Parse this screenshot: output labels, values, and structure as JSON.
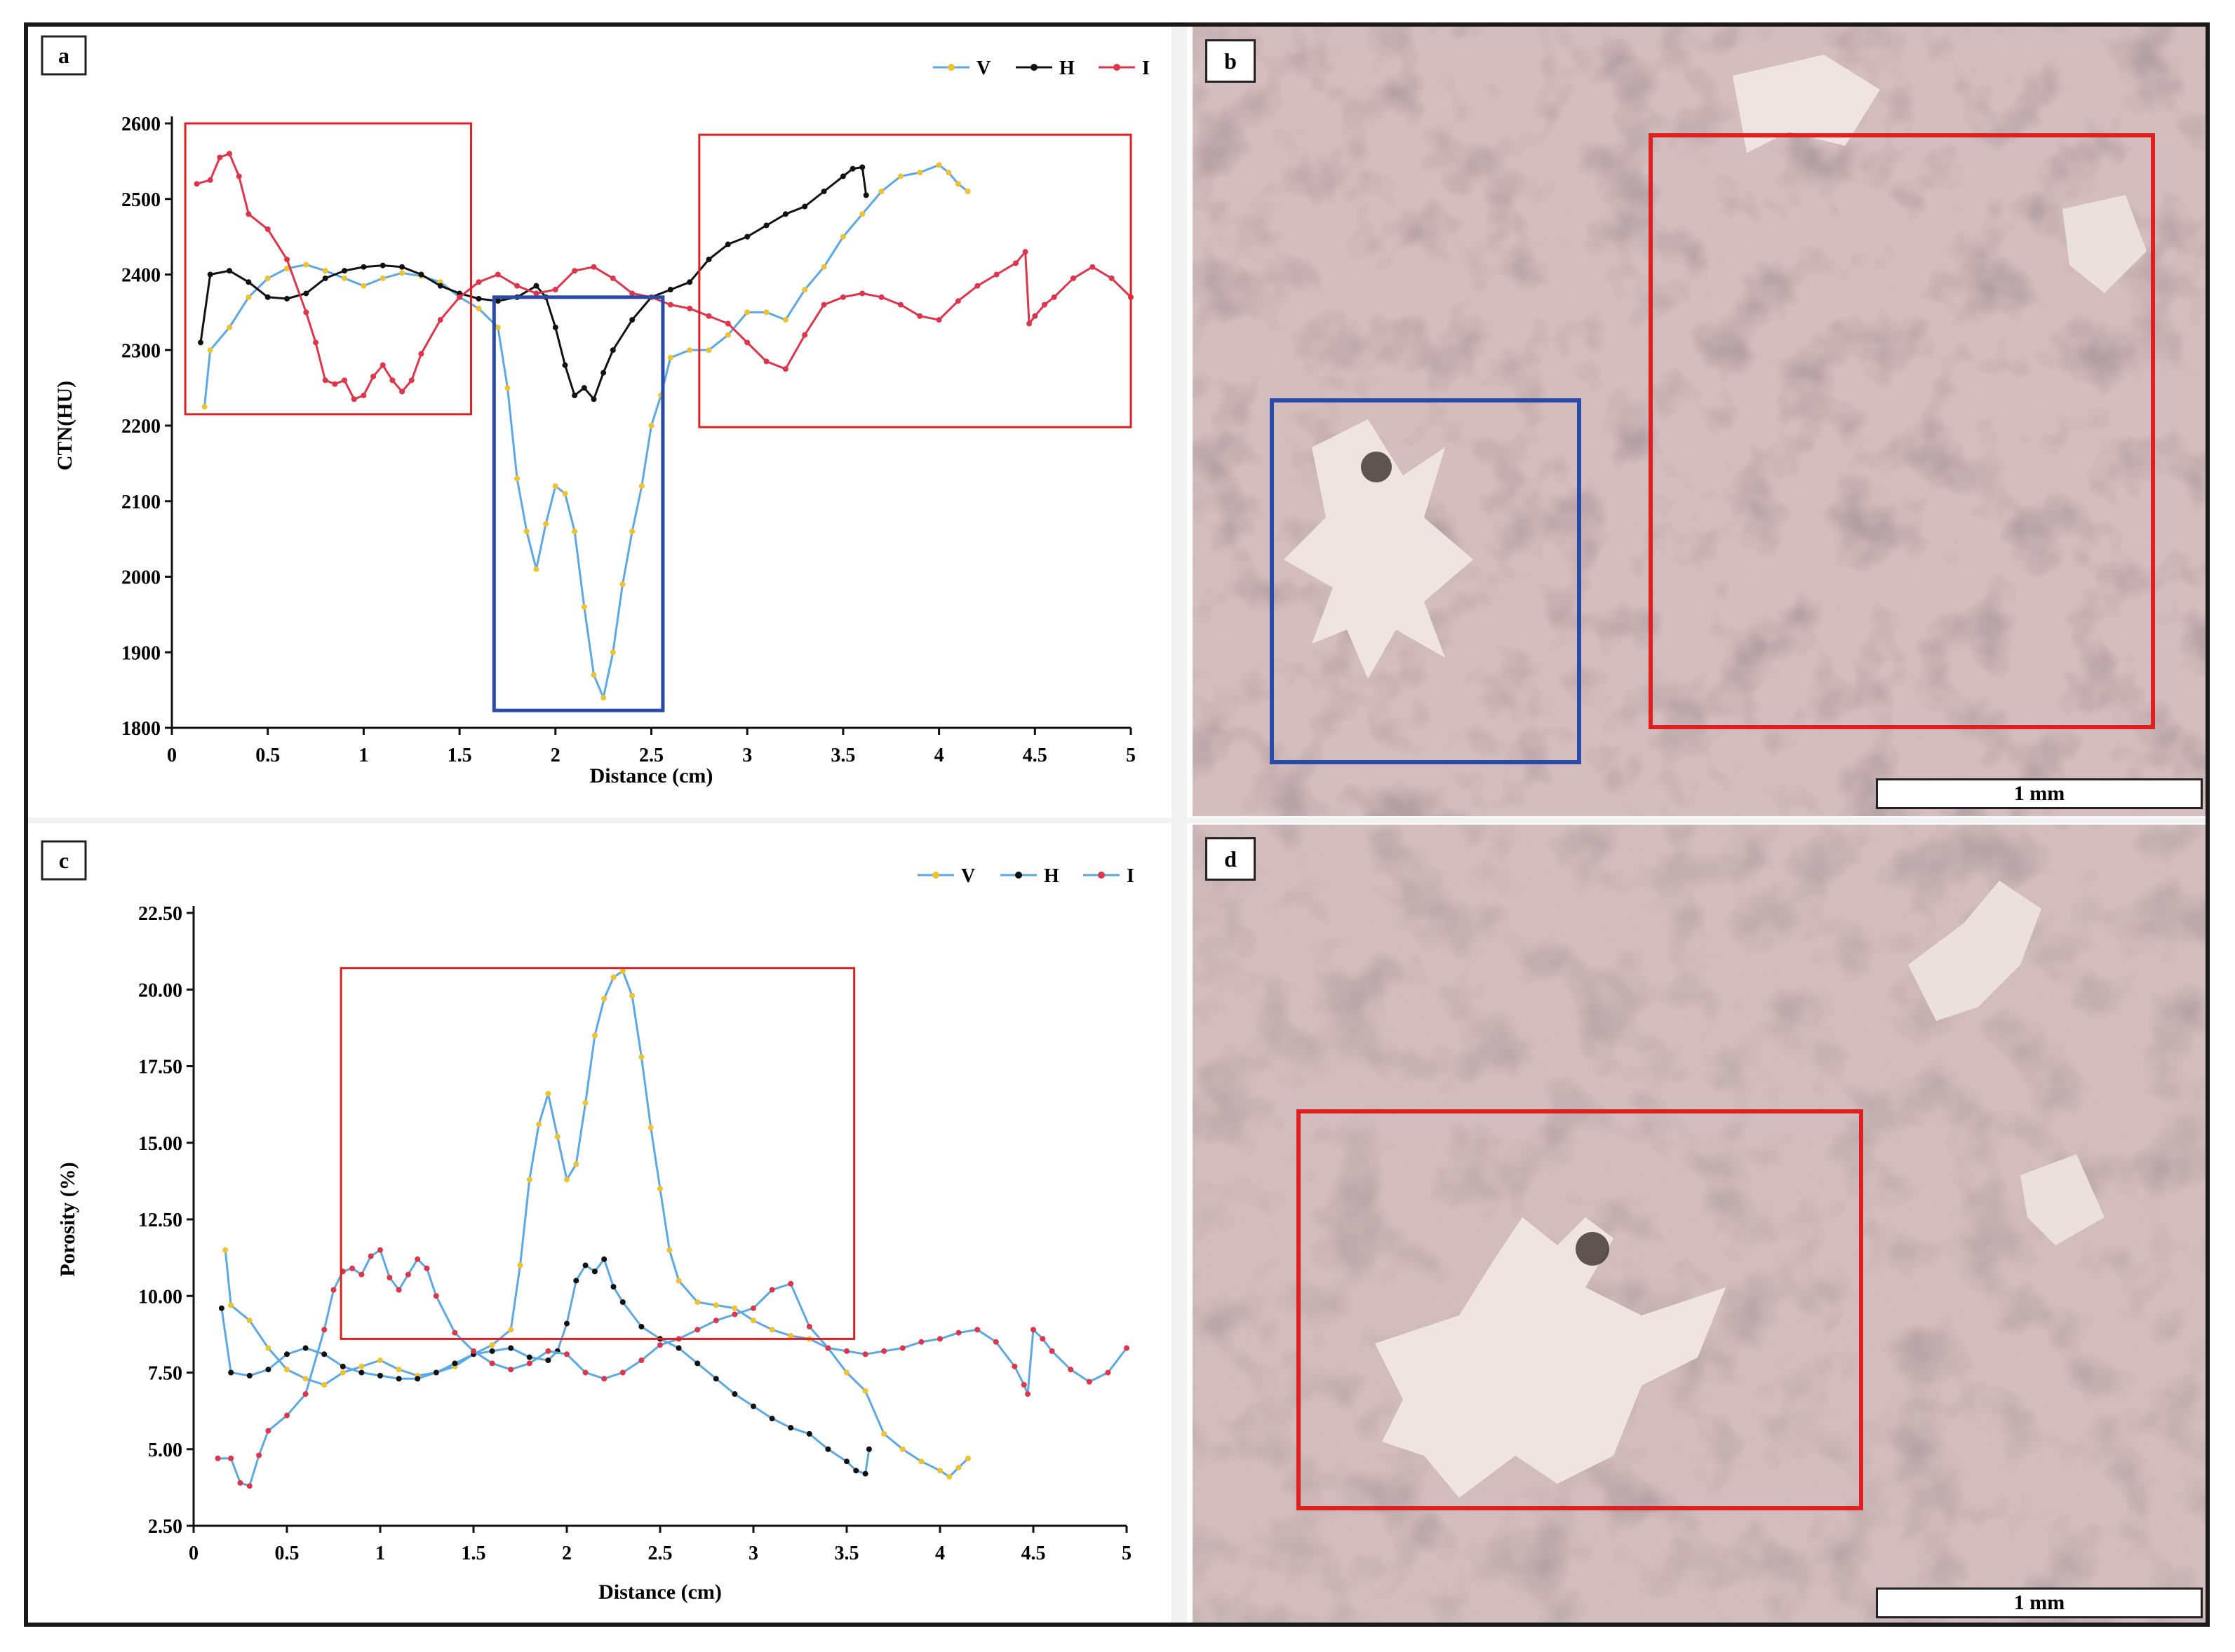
{
  "colors": {
    "frame": "#1a1a1a",
    "series_line": "#5aa9e6",
    "marker_v": "#f2c12e",
    "marker_h": "#111111",
    "marker_i": "#e0344b",
    "line_h_panel_a": "#111111",
    "line_i_panel_a": "#e0344b",
    "roi_red": "#e02020",
    "roi_blue": "#2a4aa8"
  },
  "panels": {
    "a": {
      "label": "a"
    },
    "b": {
      "label": "b",
      "scalebar": "1 mm"
    },
    "c": {
      "label": "c"
    },
    "d": {
      "label": "d",
      "scalebar": "1 mm"
    }
  },
  "chart_data": [
    {
      "id": "a",
      "type": "line",
      "title": "",
      "xlabel": "Distance (cm)",
      "ylabel": "CTN(HU)",
      "xlim": [
        0,
        5
      ],
      "ylim": [
        1800,
        2600
      ],
      "xticks": [
        0,
        0.5,
        1,
        1.5,
        2,
        2.5,
        3,
        3.5,
        4,
        4.5,
        5
      ],
      "xtick_labels": [
        "0",
        "0.5",
        "1",
        "1.5",
        "2",
        "2.5",
        "3",
        "3.5",
        "4",
        "4.5",
        "5"
      ],
      "yticks": [
        1800,
        1900,
        2000,
        2100,
        2200,
        2300,
        2400,
        2500,
        2600
      ],
      "ytick_labels": [
        "1800",
        "1900",
        "2000",
        "2100",
        "2200",
        "2300",
        "2400",
        "2500",
        "2600"
      ],
      "legend": {
        "position": "top-right",
        "entries": [
          "V",
          "H",
          "I"
        ]
      },
      "series": [
        {
          "name": "V",
          "x": [
            0.17,
            0.2,
            0.3,
            0.4,
            0.5,
            0.6,
            0.7,
            0.8,
            0.9,
            1.0,
            1.1,
            1.2,
            1.3,
            1.4,
            1.5,
            1.6,
            1.7,
            1.75,
            1.8,
            1.85,
            1.9,
            1.95,
            2.0,
            2.05,
            2.1,
            2.15,
            2.2,
            2.25,
            2.3,
            2.35,
            2.4,
            2.45,
            2.5,
            2.55,
            2.6,
            2.7,
            2.8,
            2.9,
            3.0,
            3.1,
            3.2,
            3.3,
            3.4,
            3.5,
            3.6,
            3.7,
            3.8,
            3.9,
            4.0,
            4.05,
            4.1,
            4.15
          ],
          "values": [
            2225,
            2300,
            2330,
            2370,
            2395,
            2408,
            2413,
            2405,
            2395,
            2385,
            2395,
            2402,
            2398,
            2390,
            2370,
            2355,
            2330,
            2250,
            2130,
            2060,
            2010,
            2070,
            2120,
            2110,
            2060,
            1960,
            1870,
            1840,
            1900,
            1990,
            2060,
            2120,
            2200,
            2240,
            2290,
            2300,
            2300,
            2320,
            2350,
            2350,
            2340,
            2380,
            2410,
            2450,
            2480,
            2510,
            2530,
            2535,
            2545,
            2535,
            2520,
            2510
          ]
        },
        {
          "name": "H",
          "x": [
            0.15,
            0.2,
            0.3,
            0.4,
            0.5,
            0.6,
            0.7,
            0.8,
            0.9,
            1.0,
            1.1,
            1.2,
            1.3,
            1.4,
            1.5,
            1.6,
            1.7,
            1.8,
            1.9,
            1.95,
            2.0,
            2.05,
            2.1,
            2.15,
            2.2,
            2.25,
            2.3,
            2.4,
            2.5,
            2.6,
            2.7,
            2.8,
            2.9,
            3.0,
            3.1,
            3.2,
            3.3,
            3.4,
            3.5,
            3.55,
            3.6,
            3.62
          ],
          "values": [
            2310,
            2400,
            2405,
            2390,
            2370,
            2368,
            2375,
            2395,
            2405,
            2410,
            2412,
            2410,
            2400,
            2385,
            2375,
            2368,
            2365,
            2370,
            2385,
            2370,
            2330,
            2280,
            2240,
            2250,
            2235,
            2270,
            2300,
            2340,
            2370,
            2380,
            2390,
            2420,
            2440,
            2450,
            2465,
            2480,
            2490,
            2510,
            2530,
            2540,
            2542,
            2505
          ]
        },
        {
          "name": "I",
          "x": [
            0.13,
            0.2,
            0.25,
            0.3,
            0.35,
            0.4,
            0.5,
            0.6,
            0.7,
            0.75,
            0.8,
            0.85,
            0.9,
            0.95,
            1.0,
            1.05,
            1.1,
            1.15,
            1.2,
            1.25,
            1.3,
            1.4,
            1.5,
            1.6,
            1.7,
            1.8,
            1.9,
            2.0,
            2.1,
            2.2,
            2.3,
            2.4,
            2.5,
            2.6,
            2.7,
            2.8,
            2.9,
            3.0,
            3.1,
            3.2,
            3.3,
            3.4,
            3.5,
            3.6,
            3.7,
            3.8,
            3.9,
            4.0,
            4.1,
            4.2,
            4.3,
            4.4,
            4.45,
            4.47,
            4.5,
            4.55,
            4.6,
            4.7,
            4.8,
            4.9,
            5.0
          ],
          "values": [
            2520,
            2525,
            2555,
            2560,
            2530,
            2480,
            2460,
            2420,
            2350,
            2310,
            2260,
            2255,
            2260,
            2235,
            2240,
            2265,
            2280,
            2260,
            2245,
            2260,
            2295,
            2340,
            2370,
            2390,
            2400,
            2385,
            2375,
            2380,
            2405,
            2410,
            2395,
            2375,
            2370,
            2360,
            2355,
            2345,
            2335,
            2310,
            2285,
            2275,
            2320,
            2360,
            2370,
            2375,
            2370,
            2360,
            2345,
            2340,
            2365,
            2385,
            2400,
            2415,
            2430,
            2335,
            2345,
            2360,
            2370,
            2395,
            2410,
            2395,
            2370
          ]
        }
      ],
      "annotations": [
        {
          "shape": "rectangle",
          "color": "red",
          "x_range": [
            0.07,
            1.56
          ],
          "y_range": [
            2215,
            2600
          ]
        },
        {
          "shape": "rectangle",
          "color": "blue",
          "x_range": [
            1.68,
            2.56
          ],
          "y_range": [
            1823,
            2370
          ]
        },
        {
          "shape": "rectangle",
          "color": "red",
          "x_range": [
            2.75,
            5.0
          ],
          "y_range": [
            2198,
            2585
          ]
        }
      ]
    },
    {
      "id": "c",
      "type": "line",
      "title": "",
      "xlabel": "Distance (cm)",
      "ylabel": "Porosity (%)",
      "xlim": [
        0,
        5
      ],
      "ylim": [
        2.5,
        22.5
      ],
      "xticks": [
        0,
        0.5,
        1,
        1.5,
        2,
        2.5,
        3,
        3.5,
        4,
        4.5,
        5
      ],
      "xtick_labels": [
        "0",
        "0.5",
        "1",
        "1.5",
        "2",
        "2.5",
        "3",
        "3.5",
        "4",
        "4.5",
        "5"
      ],
      "yticks": [
        2.5,
        5.0,
        7.5,
        10.0,
        12.5,
        15.0,
        17.5,
        20.0,
        22.5
      ],
      "ytick_labels": [
        "2.50",
        "5.00",
        "7.50",
        "10.00",
        "12.50",
        "15.00",
        "17.50",
        "20.00",
        "22.50"
      ],
      "legend": {
        "position": "top-right",
        "entries": [
          "V",
          "H",
          "I"
        ]
      },
      "series": [
        {
          "name": "V",
          "x": [
            0.17,
            0.2,
            0.3,
            0.4,
            0.5,
            0.6,
            0.7,
            0.8,
            0.9,
            1.0,
            1.1,
            1.2,
            1.3,
            1.4,
            1.5,
            1.6,
            1.7,
            1.75,
            1.8,
            1.85,
            1.9,
            1.95,
            2.0,
            2.05,
            2.1,
            2.15,
            2.2,
            2.25,
            2.3,
            2.35,
            2.4,
            2.45,
            2.5,
            2.55,
            2.6,
            2.7,
            2.8,
            2.9,
            3.0,
            3.1,
            3.2,
            3.3,
            3.4,
            3.5,
            3.6,
            3.7,
            3.8,
            3.9,
            4.0,
            4.05,
            4.1,
            4.15
          ],
          "values": [
            11.5,
            9.7,
            9.2,
            8.3,
            7.6,
            7.3,
            7.1,
            7.5,
            7.7,
            7.9,
            7.6,
            7.4,
            7.5,
            7.7,
            8.1,
            8.4,
            8.9,
            11.0,
            13.8,
            15.6,
            16.6,
            15.2,
            13.8,
            14.3,
            16.3,
            18.5,
            19.7,
            20.4,
            20.6,
            19.8,
            17.8,
            15.5,
            13.5,
            11.5,
            10.5,
            9.8,
            9.7,
            9.6,
            9.2,
            8.9,
            8.7,
            8.6,
            8.3,
            7.5,
            6.9,
            5.5,
            5.0,
            4.6,
            4.3,
            4.1,
            4.4,
            4.7
          ]
        },
        {
          "name": "H",
          "x": [
            0.15,
            0.2,
            0.3,
            0.4,
            0.5,
            0.6,
            0.7,
            0.8,
            0.9,
            1.0,
            1.1,
            1.2,
            1.3,
            1.4,
            1.5,
            1.6,
            1.7,
            1.8,
            1.9,
            1.95,
            2.0,
            2.05,
            2.1,
            2.15,
            2.2,
            2.25,
            2.3,
            2.4,
            2.5,
            2.6,
            2.7,
            2.8,
            2.9,
            3.0,
            3.1,
            3.2,
            3.3,
            3.4,
            3.5,
            3.55,
            3.6,
            3.62
          ],
          "values": [
            9.6,
            7.5,
            7.4,
            7.6,
            8.1,
            8.3,
            8.1,
            7.7,
            7.5,
            7.4,
            7.3,
            7.3,
            7.5,
            7.8,
            8.1,
            8.2,
            8.3,
            8.0,
            7.9,
            8.2,
            9.1,
            10.5,
            11.0,
            10.8,
            11.2,
            10.3,
            9.8,
            9.0,
            8.6,
            8.3,
            7.8,
            7.3,
            6.8,
            6.4,
            6.0,
            5.7,
            5.5,
            5.0,
            4.6,
            4.3,
            4.2,
            5.0
          ]
        },
        {
          "name": "I",
          "x": [
            0.13,
            0.2,
            0.25,
            0.3,
            0.35,
            0.4,
            0.5,
            0.6,
            0.7,
            0.75,
            0.8,
            0.85,
            0.9,
            0.95,
            1.0,
            1.05,
            1.1,
            1.15,
            1.2,
            1.25,
            1.3,
            1.4,
            1.5,
            1.6,
            1.7,
            1.8,
            1.9,
            2.0,
            2.1,
            2.2,
            2.3,
            2.4,
            2.5,
            2.6,
            2.7,
            2.8,
            2.9,
            3.0,
            3.1,
            3.2,
            3.3,
            3.4,
            3.5,
            3.6,
            3.7,
            3.8,
            3.9,
            4.0,
            4.1,
            4.2,
            4.3,
            4.4,
            4.45,
            4.47,
            4.5,
            4.55,
            4.6,
            4.7,
            4.8,
            4.9,
            5.0
          ],
          "values": [
            4.7,
            4.7,
            3.9,
            3.8,
            4.8,
            5.6,
            6.1,
            6.8,
            8.9,
            10.2,
            10.8,
            10.9,
            10.7,
            11.3,
            11.5,
            10.6,
            10.2,
            10.7,
            11.2,
            10.9,
            10.0,
            8.8,
            8.2,
            7.8,
            7.6,
            7.8,
            8.2,
            8.1,
            7.5,
            7.3,
            7.5,
            7.9,
            8.4,
            8.6,
            8.9,
            9.2,
            9.4,
            9.6,
            10.2,
            10.4,
            9.0,
            8.3,
            8.2,
            8.1,
            8.2,
            8.3,
            8.5,
            8.6,
            8.8,
            8.9,
            8.5,
            7.7,
            7.1,
            6.8,
            8.9,
            8.6,
            8.2,
            7.6,
            7.2,
            7.5,
            8.3
          ]
        }
      ],
      "annotations": [
        {
          "shape": "rectangle",
          "color": "red",
          "x_range": [
            0.79,
            3.54
          ],
          "y_range": [
            8.6,
            20.7
          ]
        }
      ]
    }
  ]
}
